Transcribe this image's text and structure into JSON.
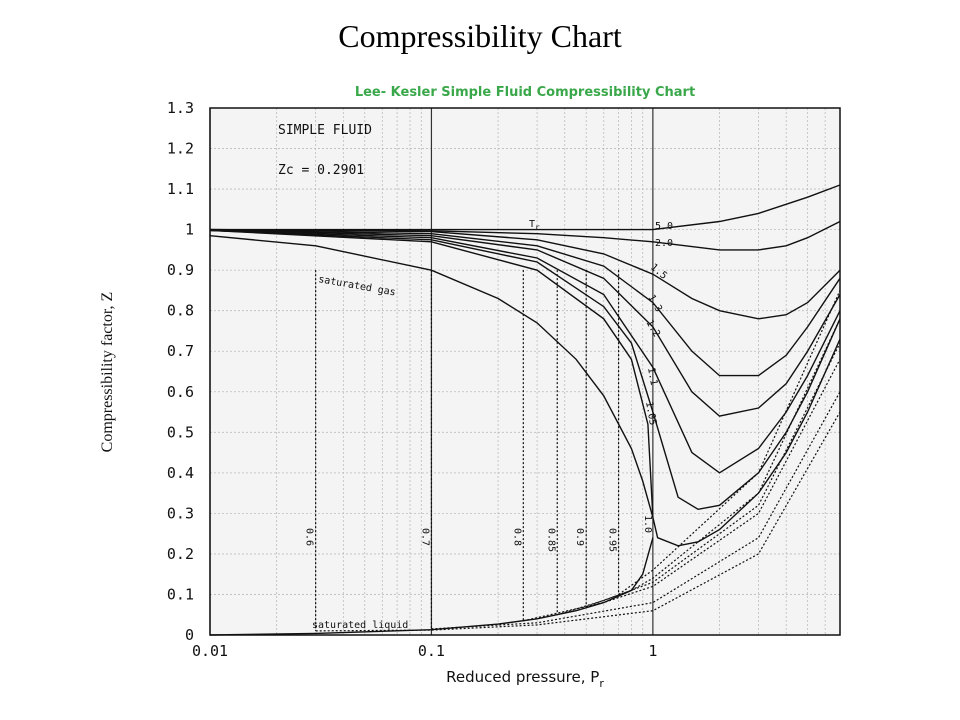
{
  "page": {
    "title": "Compressibility Chart"
  },
  "chart_data": {
    "type": "line",
    "title": "Lee- Kesler Simple Fluid Compressibility Chart",
    "xlabel": "Reduced pressure, P",
    "xlabel_sub": "r",
    "ylabel": "Compressibility factor, Z",
    "xscale": "log",
    "xlim": [
      0.01,
      7
    ],
    "ylim": [
      0,
      1.3
    ],
    "x_ticks": [
      0.01,
      0.1,
      1
    ],
    "x_tick_labels": [
      "0.01",
      "0.1",
      "1"
    ],
    "y_ticks": [
      0,
      0.1,
      0.2,
      0.3,
      0.4,
      0.5,
      0.6,
      0.7,
      0.8,
      0.9,
      1,
      1.1,
      1.2,
      1.3
    ],
    "y_tick_labels": [
      "0",
      "0.1",
      "0.2",
      "0.3",
      "0.4",
      "0.5",
      "0.6",
      "0.7",
      "0.8",
      "0.9",
      "1",
      "1.1",
      "1.2",
      "1.3"
    ],
    "grid": true,
    "annotations": {
      "fluid": "SIMPLE FLUID",
      "zc": "Zc = 0.2901",
      "tr_label": "T",
      "tr_sub": "r",
      "saturated_gas": "saturated gas",
      "saturated_liquid": "saturated liquid"
    },
    "series": [
      {
        "name": "5.0",
        "style": "solid",
        "x": [
          0.01,
          0.1,
          0.5,
          1,
          2,
          3,
          5,
          7
        ],
        "y": [
          1.0,
          1.0,
          1.0,
          1.0,
          1.02,
          1.04,
          1.08,
          1.11
        ]
      },
      {
        "name": "2.0",
        "style": "solid",
        "x": [
          0.01,
          0.1,
          0.3,
          0.6,
          1,
          2,
          3,
          4,
          5,
          7
        ],
        "y": [
          1.0,
          0.997,
          0.99,
          0.98,
          0.97,
          0.95,
          0.95,
          0.96,
          0.98,
          1.02
        ]
      },
      {
        "name": "1.5",
        "style": "solid",
        "x": [
          0.01,
          0.1,
          0.3,
          0.6,
          1,
          1.5,
          2,
          3,
          4,
          5,
          7
        ],
        "y": [
          1.0,
          0.995,
          0.975,
          0.94,
          0.89,
          0.83,
          0.8,
          0.78,
          0.79,
          0.82,
          0.9
        ]
      },
      {
        "name": "1.3",
        "style": "solid",
        "x": [
          0.01,
          0.1,
          0.3,
          0.6,
          1,
          1.5,
          2,
          3,
          4,
          5,
          7
        ],
        "y": [
          0.999,
          0.99,
          0.96,
          0.91,
          0.82,
          0.7,
          0.64,
          0.64,
          0.69,
          0.76,
          0.88
        ]
      },
      {
        "name": "1.2",
        "style": "solid",
        "x": [
          0.01,
          0.1,
          0.3,
          0.6,
          1,
          1.5,
          2,
          3,
          4,
          5,
          7
        ],
        "y": [
          0.999,
          0.985,
          0.95,
          0.88,
          0.76,
          0.6,
          0.54,
          0.56,
          0.62,
          0.7,
          0.84
        ]
      },
      {
        "name": "1.1",
        "style": "solid",
        "x": [
          0.01,
          0.1,
          0.3,
          0.6,
          1,
          1.5,
          2,
          3,
          4,
          5,
          7
        ],
        "y": [
          0.998,
          0.98,
          0.93,
          0.84,
          0.66,
          0.45,
          0.4,
          0.46,
          0.55,
          0.64,
          0.8
        ]
      },
      {
        "name": "1.05",
        "style": "solid",
        "x": [
          0.01,
          0.1,
          0.3,
          0.6,
          0.8,
          1,
          1.3,
          1.6,
          2,
          3,
          4,
          5,
          7
        ],
        "y": [
          0.998,
          0.975,
          0.92,
          0.81,
          0.72,
          0.55,
          0.34,
          0.31,
          0.32,
          0.4,
          0.5,
          0.6,
          0.78
        ]
      },
      {
        "name": "1.0",
        "style": "solid",
        "x": [
          0.01,
          0.1,
          0.3,
          0.6,
          0.8,
          0.95,
          1.0,
          1.05,
          1.3,
          1.6,
          2,
          3,
          4,
          5,
          7
        ],
        "y": [
          0.998,
          0.97,
          0.9,
          0.78,
          0.68,
          0.52,
          0.29,
          0.24,
          0.22,
          0.23,
          0.26,
          0.35,
          0.45,
          0.55,
          0.73
        ]
      },
      {
        "name": "saturated gas",
        "style": "solid",
        "x": [
          0.01,
          0.03,
          0.1,
          0.2,
          0.3,
          0.45,
          0.6,
          0.8,
          0.9,
          1.0
        ],
        "y": [
          0.985,
          0.96,
          0.9,
          0.83,
          0.77,
          0.68,
          0.59,
          0.46,
          0.38,
          0.29
        ]
      },
      {
        "name": "saturated liquid",
        "style": "solid",
        "x": [
          0.01,
          0.03,
          0.1,
          0.2,
          0.3,
          0.45,
          0.6,
          0.8,
          0.9,
          1.0
        ],
        "y": [
          0.0,
          0.004,
          0.013,
          0.027,
          0.04,
          0.06,
          0.08,
          0.11,
          0.15,
          0.24
        ]
      },
      {
        "name": "0.6",
        "style": "dotted",
        "x": [
          0.03,
          0.1,
          0.3,
          1,
          3,
          7
        ],
        "y": [
          0.01,
          0.012,
          0.025,
          0.06,
          0.2,
          0.55
        ],
        "xv": 0.03
      },
      {
        "name": "0.7",
        "style": "dotted",
        "x": [
          0.1,
          0.3,
          1,
          3,
          7
        ],
        "y": [
          0.015,
          0.03,
          0.08,
          0.24,
          0.6
        ],
        "xv": 0.1
      },
      {
        "name": "0.8",
        "style": "dotted",
        "x": [
          0.26,
          0.6,
          1,
          3,
          7
        ],
        "y": [
          0.035,
          0.08,
          0.12,
          0.3,
          0.68
        ],
        "xv": 0.26
      },
      {
        "name": "0.85",
        "style": "dotted",
        "x": [
          0.37,
          0.6,
          1,
          3,
          7
        ],
        "y": [
          0.05,
          0.085,
          0.13,
          0.32,
          0.72
        ],
        "xv": 0.37
      },
      {
        "name": "0.9",
        "style": "dotted",
        "x": [
          0.5,
          0.8,
          1,
          3,
          7
        ],
        "y": [
          0.07,
          0.11,
          0.14,
          0.35,
          0.78
        ],
        "xv": 0.5
      },
      {
        "name": "0.95",
        "style": "dotted",
        "x": [
          0.7,
          1,
          3,
          7
        ],
        "y": [
          0.1,
          0.16,
          0.4,
          0.85
        ],
        "xv": 0.7
      }
    ]
  }
}
